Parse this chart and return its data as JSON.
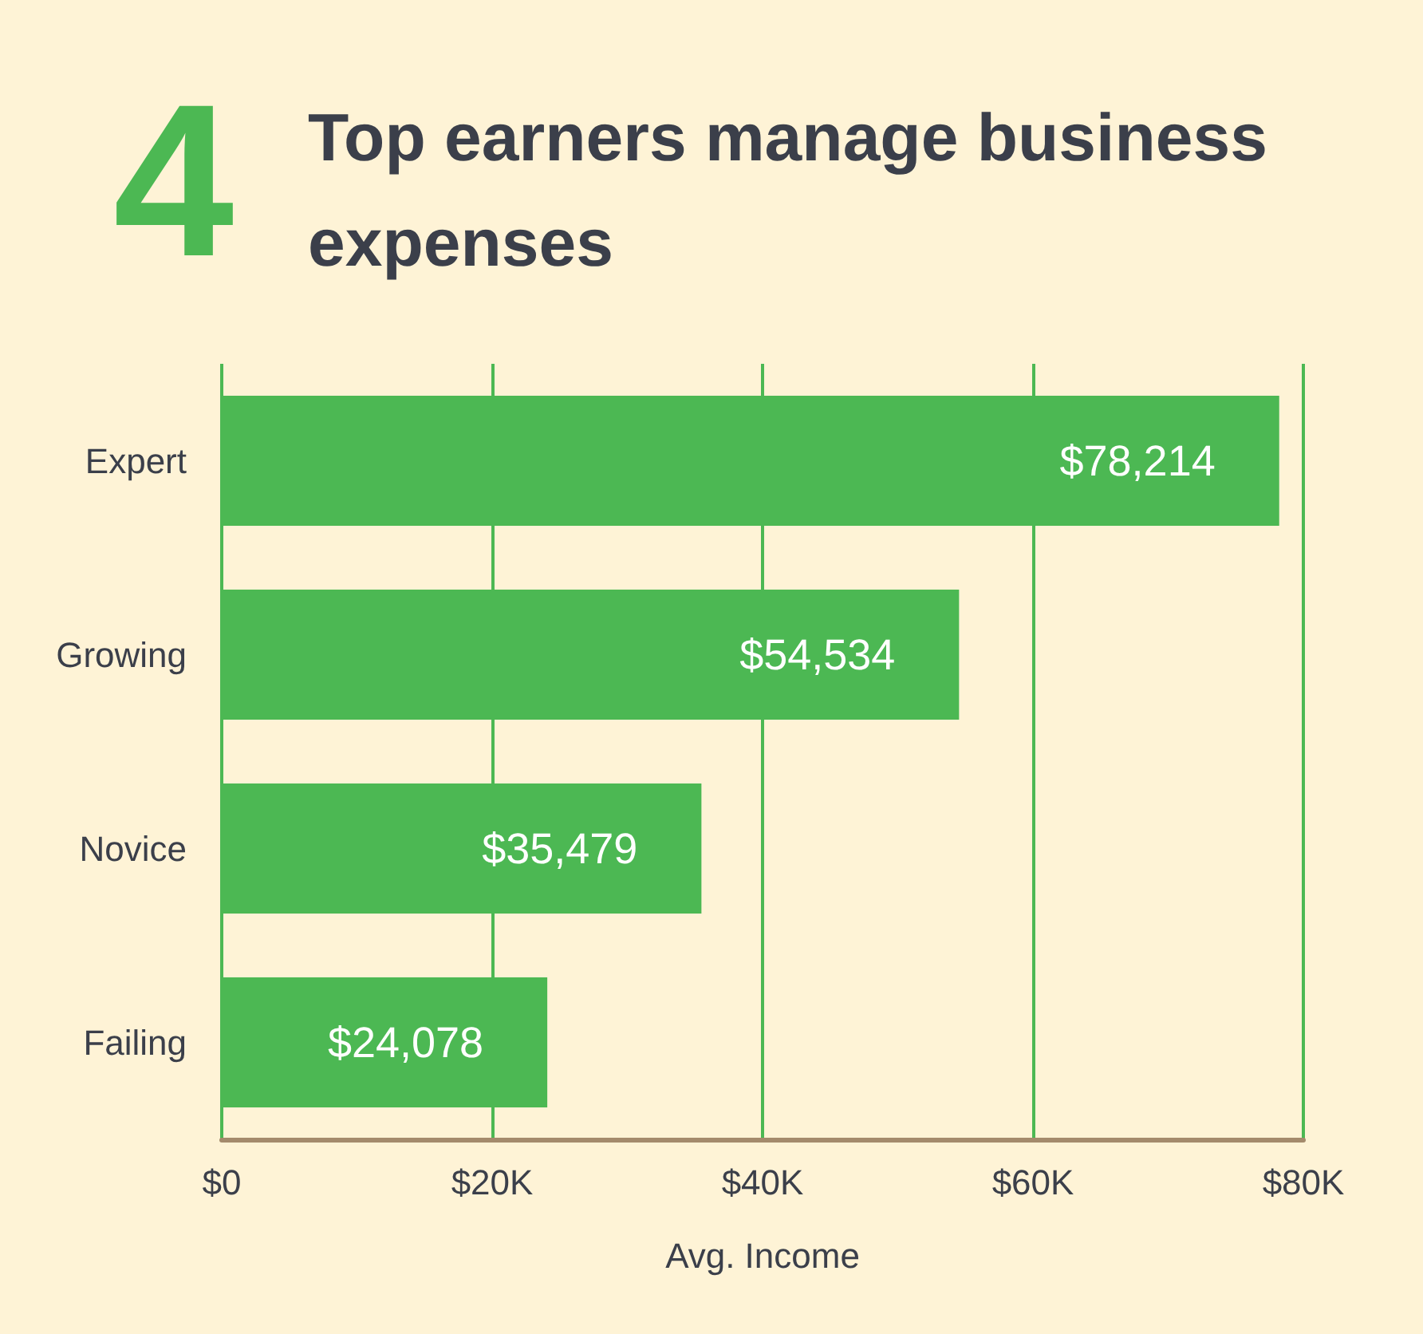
{
  "chart_data": {
    "type": "bar",
    "orientation": "horizontal",
    "title": "Top earners manage business expenses",
    "annotations": [
      "4"
    ],
    "xlabel": "Avg. Income",
    "categories": [
      "Expert",
      "Growing",
      "Novice",
      "Failing"
    ],
    "values": [
      78214,
      54534,
      35479,
      24078
    ],
    "value_labels": [
      "$78,214",
      "$54,534",
      "$35,479",
      "$24,078"
    ],
    "color": "#4cb853",
    "xlim": [
      0,
      80000
    ],
    "xticks": [
      {
        "value": 0,
        "label": "$0"
      },
      {
        "value": 20000,
        "label": "$20K"
      },
      {
        "value": 40000,
        "label": "$40K"
      },
      {
        "value": 60000,
        "label": "$60K"
      },
      {
        "value": 80000,
        "label": "$80K"
      }
    ],
    "grid": "x"
  }
}
